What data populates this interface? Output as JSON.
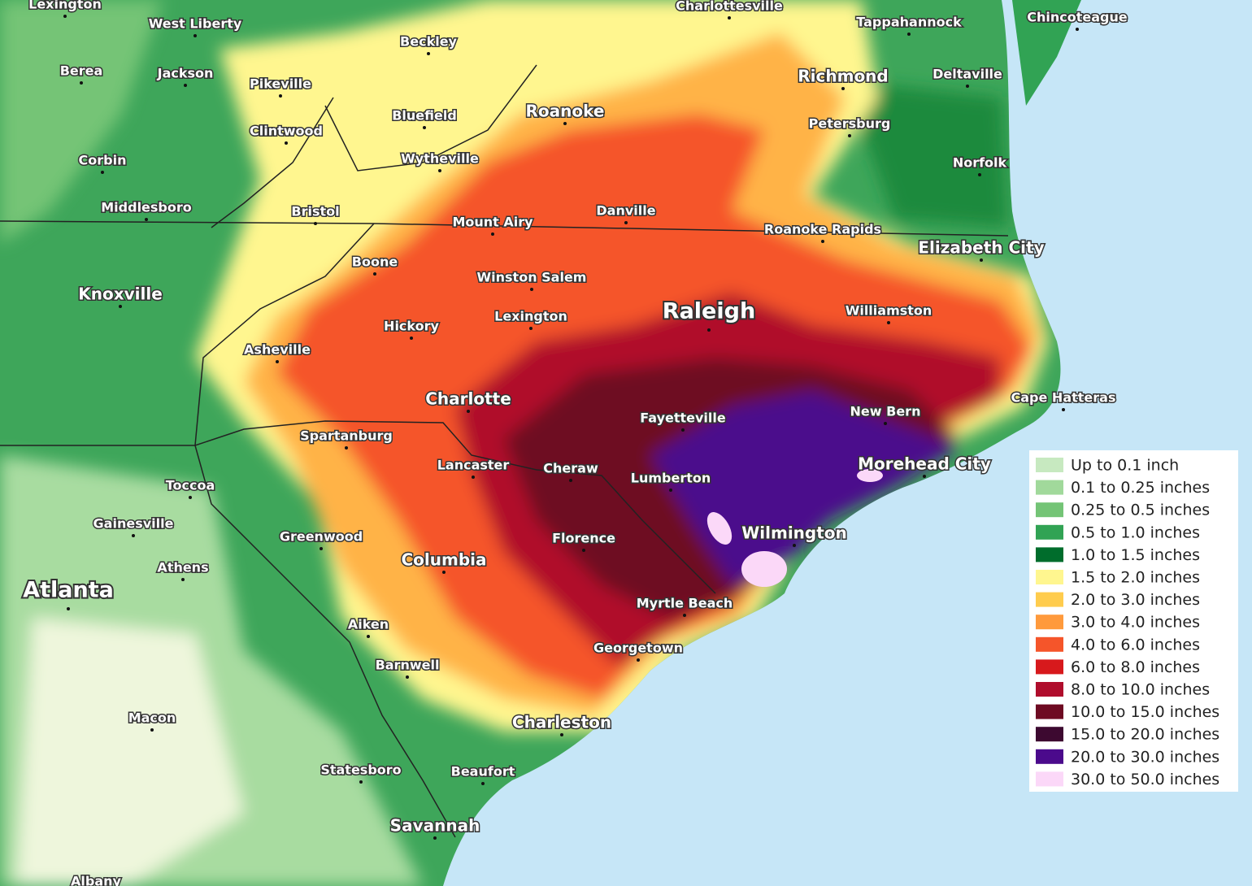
{
  "cities": [
    "Lexington",
    "West Liberty",
    "Beckley",
    "Charlottesville",
    "Tappahannock",
    "Chincoteague",
    "Berea",
    "Jackson",
    "Pikeville",
    "Richmond",
    "Deltaville",
    "Bluefield",
    "Roanoke",
    "Clintwood",
    "Petersburg",
    "Corbin",
    "Wytheville",
    "Norfolk",
    "Middlesboro",
    "Bristol",
    "Mount Airy",
    "Danville",
    "Roanoke Rapids",
    "Elizabeth City",
    "Boone",
    "Winston Salem",
    "Knoxville",
    "Raleigh",
    "Williamston",
    "Lexington",
    "Hickory",
    "Asheville",
    "Charlotte",
    "Cape Hatteras",
    "Fayetteville",
    "New Bern",
    "Spartanburg",
    "Lancaster",
    "Cheraw",
    "Lumberton",
    "Morehead City",
    "Toccoa",
    "Gainesville",
    "Greenwood",
    "Florence",
    "Wilmington",
    "Columbia",
    "Athens",
    "Atlanta",
    "Myrtle Beach",
    "Aiken",
    "Georgetown",
    "Barnwell",
    "Macon",
    "Charleston",
    "Statesboro",
    "Beaufort",
    "Savannah",
    "Albany"
  ],
  "legend": [
    {
      "label": "Up to 0.1 inch",
      "color": "#c7e9c0"
    },
    {
      "label": "0.1 to 0.25 inches",
      "color": "#a1d99b"
    },
    {
      "label": "0.25 to 0.5 inches",
      "color": "#74c476"
    },
    {
      "label": "0.5 to 1.0 inches",
      "color": "#31a354"
    },
    {
      "label": "1.0 to 1.5 inches",
      "color": "#006d2c"
    },
    {
      "label": "1.5 to 2.0 inches",
      "color": "#fff68f"
    },
    {
      "label": "2.0 to 3.0 inches",
      "color": "#ffcc4d"
    },
    {
      "label": "3.0 to 4.0 inches",
      "color": "#ff9a3c"
    },
    {
      "label": "4.0 to 6.0 inches",
      "color": "#f5552a"
    },
    {
      "label": "6.0 to 8.0 inches",
      "color": "#d7191c"
    },
    {
      "label": "8.0 to 10.0 inches",
      "color": "#b00d2c"
    },
    {
      "label": "10.0 to 15.0 inches",
      "color": "#6e0a22"
    },
    {
      "label": "15.0 to 20.0 inches",
      "color": "#3d0930"
    },
    {
      "label": "20.0 to 30.0 inches",
      "color": "#4b0a8c"
    },
    {
      "label": "30.0 to 50.0 inches",
      "color": "#fbd8f8"
    }
  ]
}
